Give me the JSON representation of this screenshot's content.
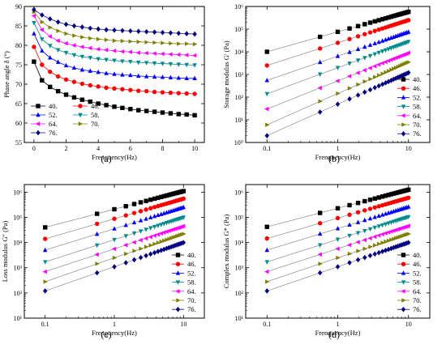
{
  "figure": {
    "panels": [
      "(a)",
      "(b)",
      "(c)",
      "(d)"
    ]
  },
  "series_styles": [
    {
      "name": "40.",
      "color": "#000000",
      "marker": "square"
    },
    {
      "name": "46.",
      "color": "#ff0000",
      "marker": "circle"
    },
    {
      "name": "52.",
      "color": "#0000ff",
      "marker": "triangle-up"
    },
    {
      "name": "58.",
      "color": "#008b8b",
      "marker": "triangle-down"
    },
    {
      "name": "64.",
      "color": "#ff00ff",
      "marker": "triangle-left"
    },
    {
      "name": "70.",
      "color": "#808000",
      "marker": "triangle-right"
    },
    {
      "name": "76.",
      "color": "#000080",
      "marker": "diamond"
    }
  ],
  "chart_data": [
    {
      "panel": "(a)",
      "type": "line",
      "xlabel": "Frenquency(Hz)",
      "ylabel": "Phase angle δ (°)",
      "xscale": "linear",
      "yscale": "linear",
      "xlim": [
        -0.6,
        10.6
      ],
      "ylim": [
        55,
        90
      ],
      "xticks": [
        "0",
        "2",
        "4",
        "6",
        "8",
        "10"
      ],
      "yticks": [
        "55",
        "60",
        "65",
        "70",
        "75",
        "80",
        "85",
        "90"
      ],
      "legend": {
        "placement": "bottom-left",
        "columns": 2
      },
      "x": [
        0,
        0.5,
        1,
        1.5,
        2,
        2.5,
        3,
        3.5,
        4,
        4.5,
        5,
        5.5,
        6,
        6.5,
        7,
        7.5,
        8,
        8.5,
        9,
        9.5,
        10
      ],
      "series": [
        {
          "name": "40.",
          "values": [
            75.8,
            71.0,
            69.3,
            68.2,
            67.3,
            66.6,
            66.0,
            65.5,
            65.0,
            64.6,
            64.2,
            63.9,
            63.6,
            63.3,
            63.1,
            62.9,
            62.7,
            62.5,
            62.3,
            62.2,
            62.0
          ]
        },
        {
          "name": "46.",
          "values": [
            79.6,
            75.0,
            73.2,
            72.0,
            71.2,
            70.6,
            70.1,
            69.7,
            69.4,
            69.1,
            68.9,
            68.7,
            68.5,
            68.3,
            68.2,
            68.0,
            67.9,
            67.8,
            67.7,
            67.6,
            67.5
          ]
        },
        {
          "name": "52.",
          "values": [
            83.0,
            78.6,
            76.8,
            75.7,
            74.8,
            74.2,
            73.7,
            73.4,
            73.1,
            72.8,
            72.6,
            72.4,
            72.3,
            72.1,
            72.0,
            71.9,
            71.8,
            71.7,
            71.6,
            71.5,
            71.5
          ]
        },
        {
          "name": "58.",
          "values": [
            85.8,
            81.6,
            79.9,
            78.8,
            78.1,
            77.5,
            77.1,
            76.8,
            76.5,
            76.3,
            76.1,
            75.9,
            75.8,
            75.6,
            75.5,
            75.4,
            75.3,
            75.2,
            75.1,
            75.0,
            74.9
          ]
        },
        {
          "name": "64.",
          "values": [
            87.6,
            84.0,
            82.3,
            81.2,
            80.5,
            80.0,
            79.6,
            79.3,
            79.0,
            78.8,
            78.6,
            78.4,
            78.3,
            78.1,
            78.0,
            77.9,
            77.8,
            77.7,
            77.6,
            77.5,
            77.4
          ]
        },
        {
          "name": "70.",
          "values": [
            88.6,
            86.0,
            84.6,
            83.7,
            83.0,
            82.5,
            82.1,
            81.8,
            81.6,
            81.4,
            81.2,
            81.1,
            81.0,
            80.9,
            80.8,
            80.7,
            80.6,
            80.5,
            80.4,
            80.4,
            80.3
          ]
        },
        {
          "name": "76.",
          "values": [
            89.2,
            87.8,
            86.8,
            86.0,
            85.4,
            85.0,
            84.7,
            84.4,
            84.2,
            84.0,
            83.9,
            83.8,
            83.7,
            83.6,
            83.5,
            83.4,
            83.3,
            83.2,
            83.1,
            83.0,
            82.9
          ]
        }
      ]
    },
    {
      "panel": "(b)",
      "type": "scatter",
      "xlabel": "Frenquency(Hz)",
      "ylabel": "Storage modulus G' (Pa)",
      "xscale": "log",
      "yscale": "log",
      "xlim": [
        0.05,
        20
      ],
      "ylim": [
        1,
        1000000
      ],
      "xticks": [
        "0.1",
        "1",
        "10"
      ],
      "yticks": [
        "10⁰",
        "10¹",
        "10²",
        "10³",
        "10⁴",
        "10⁵",
        "10⁶"
      ],
      "legend": {
        "placement": "bottom-right",
        "columns": 1
      },
      "fit_lines": true,
      "x": [
        0.1,
        0.562,
        1.0,
        1.468,
        1.937,
        2.406,
        2.875,
        3.344,
        3.812,
        4.281,
        4.75,
        5.219,
        5.688,
        6.156,
        6.625,
        7.094,
        7.562,
        8.031,
        8.5,
        8.969,
        9.438,
        10.0
      ],
      "series": [
        {
          "name": "40.",
          "start": 10000,
          "end": 580000
        },
        {
          "name": "46.",
          "start": 2500,
          "end": 250000
        },
        {
          "name": "52.",
          "start": 550,
          "end": 75000
        },
        {
          "name": "58.",
          "start": 140,
          "end": 28000
        },
        {
          "name": "64.",
          "start": 30,
          "end": 9000
        },
        {
          "name": "70.",
          "start": 6,
          "end": 3500
        },
        {
          "name": "76.",
          "start": 2,
          "end": 1200
        }
      ]
    },
    {
      "panel": "(c)",
      "type": "scatter",
      "xlabel": "Frenquency(Hz)",
      "ylabel": "Loss modulus G\" (Pa)",
      "xscale": "log",
      "yscale": "log",
      "xlim": [
        0.05,
        20
      ],
      "ylim": [
        10,
        2000000
      ],
      "xticks": [
        "0.1",
        "1",
        "10"
      ],
      "yticks": [
        "10¹",
        "10²",
        "10³",
        "10⁴",
        "10⁵",
        "10⁶"
      ],
      "legend": {
        "placement": "bottom-right",
        "columns": 1
      },
      "fit_lines": true,
      "x": [
        0.1,
        0.562,
        1.0,
        1.468,
        1.937,
        2.406,
        2.875,
        3.344,
        3.812,
        4.281,
        4.75,
        5.219,
        5.688,
        6.156,
        6.625,
        7.094,
        7.562,
        8.031,
        8.5,
        8.969,
        9.438,
        10.0
      ],
      "series": [
        {
          "name": "40.",
          "start": 40000,
          "end": 1100000
        },
        {
          "name": "46.",
          "start": 14000,
          "end": 550000
        },
        {
          "name": "52.",
          "start": 5000,
          "end": 250000
        },
        {
          "name": "58.",
          "start": 1700,
          "end": 100000
        },
        {
          "name": "64.",
          "start": 700,
          "end": 45000
        },
        {
          "name": "70.",
          "start": 280,
          "end": 22000
        },
        {
          "name": "76.",
          "start": 120,
          "end": 10000
        }
      ]
    },
    {
      "panel": "(d)",
      "type": "scatter",
      "xlabel": "Frenquency(Hz)",
      "ylabel": "Complex modulus G* (Pa)",
      "xscale": "log",
      "yscale": "log",
      "xlim": [
        0.05,
        20
      ],
      "ylim": [
        10,
        2000000
      ],
      "xticks": [
        "0.1",
        "1",
        "10"
      ],
      "yticks": [
        "10¹",
        "10²",
        "10³",
        "10⁴",
        "10⁵",
        "10⁶"
      ],
      "legend": {
        "placement": "bottom-right",
        "columns": 1
      },
      "fit_lines": true,
      "x": [
        0.1,
        0.562,
        1.0,
        1.468,
        1.937,
        2.406,
        2.875,
        3.344,
        3.812,
        4.281,
        4.75,
        5.219,
        5.688,
        6.156,
        6.625,
        7.094,
        7.562,
        8.031,
        8.5,
        8.969,
        9.438,
        10.0
      ],
      "series": [
        {
          "name": "40.",
          "start": 42000,
          "end": 1250000
        },
        {
          "name": "46.",
          "start": 14500,
          "end": 600000
        },
        {
          "name": "52.",
          "start": 5000,
          "end": 260000
        },
        {
          "name": "58.",
          "start": 1700,
          "end": 105000
        },
        {
          "name": "64.",
          "start": 700,
          "end": 46000
        },
        {
          "name": "70.",
          "start": 280,
          "end": 22000
        },
        {
          "name": "76.",
          "start": 120,
          "end": 10000
        }
      ]
    }
  ]
}
